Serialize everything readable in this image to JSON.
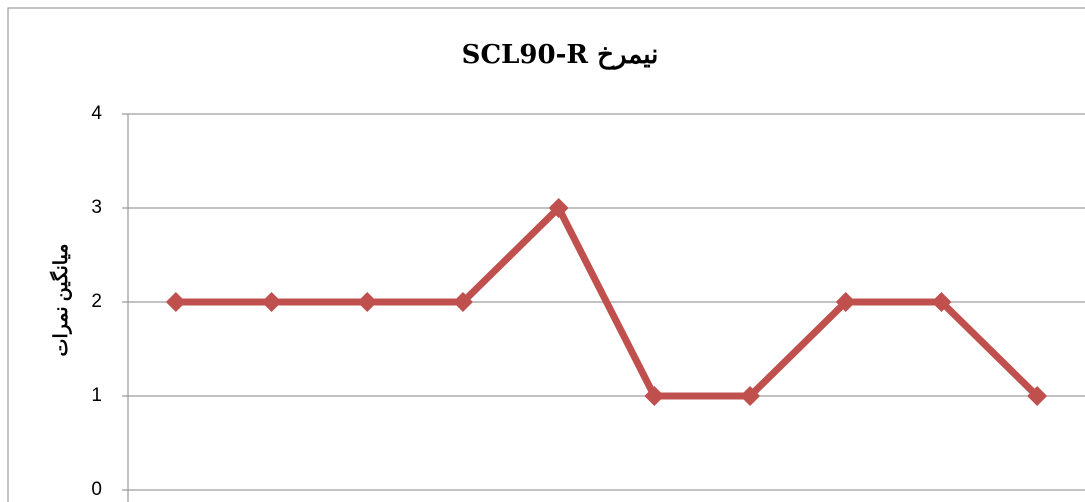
{
  "chart_data": {
    "type": "line",
    "title": "نیمرخ SCL90-R",
    "y_label": "میانگین نمرات",
    "series": [
      {
        "name": null,
        "color": "#c0504d",
        "values": [
          2,
          2,
          2,
          2,
          3,
          1,
          1,
          2,
          2,
          1
        ]
      }
    ],
    "ylim": [
      0,
      4
    ],
    "yticks": [
      0,
      1,
      2,
      3,
      4
    ],
    "grid": true
  }
}
